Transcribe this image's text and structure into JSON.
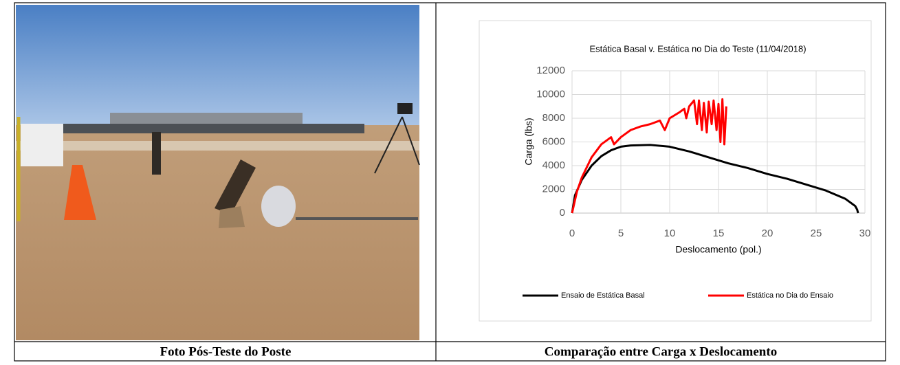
{
  "table": {
    "captions": [
      "Foto Pós-Teste do Poste",
      "Comparação entre Carga x Deslocamento"
    ]
  },
  "chart_data": {
    "type": "line",
    "title": "Estática Basal v. Estática no Dia do Teste (11/04/2018)",
    "x_label": "Deslocamento (pol.)",
    "y_label": "Carga (lbs)",
    "xlim": [
      0,
      30
    ],
    "xticks": [
      0,
      5,
      10,
      15,
      20,
      25,
      30
    ],
    "ylim": [
      0,
      12000
    ],
    "yticks": [
      0,
      2000,
      4000,
      6000,
      8000,
      10000,
      12000
    ],
    "grid": true,
    "legend": "bottom",
    "series": [
      {
        "name": "Ensaio de Estática Basal",
        "color": "#000000",
        "x": [
          0,
          0.3,
          1,
          2,
          3,
          4,
          5,
          6,
          8,
          10,
          12,
          14,
          16,
          18,
          20,
          22,
          24,
          26,
          28,
          29,
          29.2,
          29.3
        ],
        "values": [
          0,
          1500,
          2800,
          4000,
          4800,
          5300,
          5600,
          5700,
          5750,
          5600,
          5200,
          4700,
          4200,
          3800,
          3300,
          2900,
          2400,
          1900,
          1200,
          600,
          300,
          0
        ]
      },
      {
        "name": "Estática no Dia do Ensaio",
        "color": "#ff0000",
        "x": [
          0,
          0.5,
          1,
          2,
          3,
          4,
          4.3,
          5,
          6,
          7,
          8,
          9,
          9.5,
          10,
          11,
          11.5,
          11.7,
          12,
          12.5,
          12.8,
          13,
          13.3,
          13.5,
          13.8,
          14,
          14.3,
          14.5,
          14.8,
          15,
          15.2,
          15.4,
          15.6,
          15.8
        ],
        "values": [
          0,
          1800,
          3000,
          4700,
          5800,
          6400,
          5800,
          6400,
          7000,
          7300,
          7500,
          7800,
          7000,
          8000,
          8500,
          8800,
          8000,
          9000,
          9500,
          7500,
          9500,
          7000,
          9300,
          6800,
          9400,
          7500,
          9500,
          7000,
          9200,
          6000,
          9600,
          5800,
          9000
        ]
      }
    ]
  }
}
